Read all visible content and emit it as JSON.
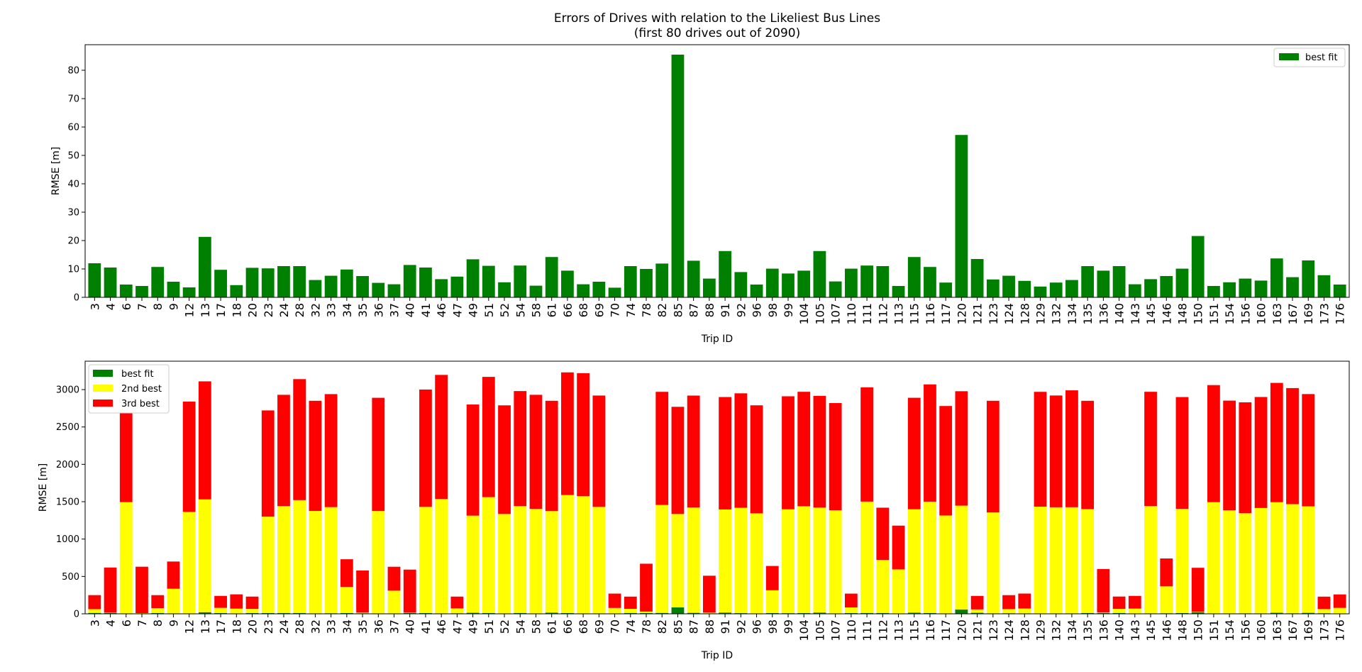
{
  "chart_data": [
    {
      "type": "bar",
      "title": "Errors of Drives with relation to the Likeliest Bus Lines",
      "subtitle": "(first 80 drives out of 2090)",
      "xlabel": "Trip ID",
      "ylabel": "RMSE [m]",
      "ylim": [
        0,
        89
      ],
      "yticks": [
        0,
        10,
        20,
        30,
        40,
        50,
        60,
        70,
        80
      ],
      "legend_position": "upper-right",
      "grid": false,
      "categories": [
        "3",
        "4",
        "6",
        "7",
        "8",
        "9",
        "12",
        "13",
        "17",
        "18",
        "20",
        "23",
        "24",
        "28",
        "32",
        "33",
        "34",
        "35",
        "36",
        "37",
        "40",
        "41",
        "46",
        "47",
        "49",
        "51",
        "52",
        "54",
        "58",
        "61",
        "66",
        "68",
        "69",
        "70",
        "74",
        "78",
        "82",
        "85",
        "87",
        "88",
        "91",
        "92",
        "96",
        "98",
        "99",
        "104",
        "105",
        "107",
        "110",
        "111",
        "112",
        "113",
        "115",
        "116",
        "117",
        "120",
        "121",
        "123",
        "124",
        "128",
        "129",
        "132",
        "134",
        "135",
        "136",
        "140",
        "143",
        "145",
        "146",
        "148",
        "150",
        "151",
        "154",
        "156",
        "160",
        "163",
        "167",
        "169",
        "173",
        "176"
      ],
      "series": [
        {
          "name": "best fit",
          "color": "#008000",
          "values": [
            12,
            10.5,
            4.5,
            4,
            10.7,
            5.5,
            3.5,
            21.3,
            9.7,
            4.3,
            10.4,
            10.2,
            11,
            11,
            6.1,
            7.6,
            9.8,
            7.5,
            5.1,
            4.6,
            11.4,
            10.5,
            6.4,
            7.3,
            13.4,
            11.1,
            5.3,
            11.2,
            4.1,
            14.2,
            9.4,
            4.6,
            5.5,
            3.4,
            11,
            10,
            11.9,
            85.5,
            12.9,
            6.6,
            16.3,
            8.9,
            4.5,
            10.1,
            8.4,
            9.4,
            16.3,
            5.6,
            10.1,
            11.2,
            11,
            4,
            14.2,
            10.7,
            5.2,
            57.2,
            13.5,
            6.3,
            7.6,
            5.8,
            3.8,
            5.2,
            6.1,
            11,
            9.4,
            11,
            4.6,
            6.4,
            7.5,
            10.1,
            21.6,
            4,
            5.3,
            6.6,
            5.9,
            13.7,
            7.1,
            13,
            7.8,
            4.5
          ]
        }
      ]
    },
    {
      "type": "bar",
      "stacked": true,
      "xlabel": "Trip ID",
      "ylabel": "RMSE [m]",
      "ylim": [
        0,
        3380
      ],
      "yticks": [
        0,
        500,
        1000,
        1500,
        2000,
        2500,
        3000
      ],
      "legend_position": "upper-left",
      "grid": false,
      "categories": [
        "3",
        "4",
        "6",
        "7",
        "8",
        "9",
        "12",
        "13",
        "17",
        "18",
        "20",
        "23",
        "24",
        "28",
        "32",
        "33",
        "34",
        "35",
        "36",
        "37",
        "40",
        "41",
        "46",
        "47",
        "49",
        "51",
        "52",
        "54",
        "58",
        "61",
        "66",
        "68",
        "69",
        "70",
        "74",
        "78",
        "82",
        "85",
        "87",
        "88",
        "91",
        "92",
        "96",
        "98",
        "99",
        "104",
        "105",
        "107",
        "110",
        "111",
        "112",
        "113",
        "115",
        "116",
        "117",
        "120",
        "121",
        "123",
        "124",
        "128",
        "129",
        "132",
        "134",
        "135",
        "136",
        "140",
        "143",
        "145",
        "146",
        "148",
        "150",
        "151",
        "154",
        "156",
        "160",
        "163",
        "167",
        "169",
        "173",
        "176"
      ],
      "series": [
        {
          "name": "best fit",
          "color": "#008000",
          "values": [
            12,
            10.5,
            4.5,
            4,
            10.7,
            5.5,
            3.5,
            21.3,
            9.7,
            4.3,
            10.4,
            10.2,
            11,
            11,
            6.1,
            7.6,
            9.8,
            7.5,
            5.1,
            4.6,
            11.4,
            10.5,
            6.4,
            7.3,
            13.4,
            11.1,
            5.3,
            11.2,
            4.1,
            14.2,
            9.4,
            4.6,
            5.5,
            3.4,
            11,
            10,
            11.9,
            85.5,
            12.9,
            6.6,
            16.3,
            8.9,
            4.5,
            10.1,
            8.4,
            9.4,
            16.3,
            5.6,
            10.1,
            11.2,
            11,
            4,
            14.2,
            10.7,
            5.2,
            57.2,
            13.5,
            6.3,
            7.6,
            5.8,
            3.8,
            5.2,
            6.1,
            11,
            9.4,
            11,
            4.6,
            6.4,
            7.5,
            10.1,
            21.6,
            4,
            5.3,
            6.6,
            5.9,
            13.7,
            7.1,
            13,
            7.8,
            4.5
          ]
        },
        {
          "name": "2nd best",
          "color": "#ffff00",
          "values": [
            50,
            5,
            1490,
            5,
            65,
            330,
            1360,
            1510,
            70,
            65,
            55,
            1290,
            1430,
            1510,
            1370,
            1420,
            350,
            10,
            1370,
            305,
            5,
            1420,
            1530,
            65,
            1300,
            1550,
            1330,
            1430,
            1400,
            1360,
            1580,
            1570,
            1425,
            75,
            55,
            20,
            1445,
            1250,
            1410,
            10,
            1380,
            1410,
            1340,
            305,
            1390,
            1430,
            1405,
            1380,
            75,
            1490,
            710,
            590,
            1385,
            1490,
            1310,
            1390,
            45,
            1350,
            55,
            65,
            1430,
            1420,
            1420,
            1390,
            10,
            55,
            65,
            1435,
            360,
            1395,
            5,
            1490,
            1380,
            1340,
            1410,
            1480,
            1460,
            1425,
            55,
            75
          ]
        },
        {
          "name": "3rd best",
          "color": "#ff0000",
          "values": [
            188,
            604,
            1706,
            621,
            174,
            364,
            1476,
            1579,
            160,
            191,
            165,
            1421,
            1489,
            1619,
            1474,
            1512,
            370,
            562,
            1515,
            320,
            575,
            1570,
            1660,
            158,
            1487,
            1609,
            1454,
            1539,
            1526,
            1476,
            1641,
            1645,
            1490,
            192,
            164,
            640,
            1513,
            1434,
            1497,
            493,
            1504,
            1531,
            1445,
            325,
            1512,
            1531,
            1495,
            1434,
            185,
            1529,
            699,
            586,
            1491,
            1569,
            1465,
            1531,
            181,
            1494,
            187,
            200,
            1536,
            1496,
            1564,
            1449,
            580,
            165,
            170,
            1529,
            373,
            1495,
            589,
            1566,
            1467,
            1483,
            1485,
            1596,
            1553,
            1502,
            167,
            180
          ]
        }
      ]
    }
  ]
}
